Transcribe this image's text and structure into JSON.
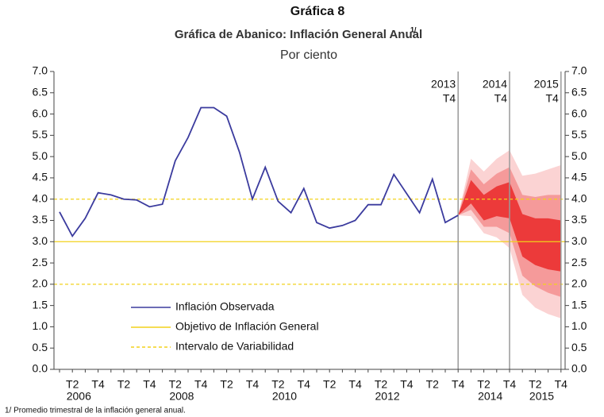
{
  "chart_data": {
    "type": "fan",
    "header": "Gráfica 8",
    "title": "Gráfica de Abanico: Inflación General Anual",
    "title_note": "1/",
    "subtitle": "Por ciento",
    "footnote": "1/ Promedio trimestral de la inflación general anual.",
    "categories": [
      null,
      "T2",
      null,
      "T4",
      null,
      "T2",
      null,
      "T4",
      null,
      "T2",
      null,
      "T4",
      null,
      "T2",
      null,
      "T4",
      null,
      "T2",
      null,
      "T4",
      null,
      "T2",
      null,
      "T4",
      null,
      "T2",
      null,
      "T4",
      null,
      "T2",
      null,
      "T4",
      null,
      "T2",
      null,
      "T4",
      null,
      "T2",
      null,
      "T4"
    ],
    "year_labels": [
      "2006",
      "2008",
      "2010",
      "2012",
      "2014",
      "2015"
    ],
    "markers": [
      {
        "year": "2013",
        "quarter": "T4"
      },
      {
        "year": "2014",
        "quarter": "T4"
      },
      {
        "year": "2015",
        "quarter": "T4"
      }
    ],
    "series": [
      {
        "name": "Inflación Observada",
        "color": "#3b3b9e",
        "values": [
          3.7,
          3.13,
          3.55,
          4.15,
          4.1,
          4.0,
          3.98,
          3.82,
          3.88,
          4.9,
          5.45,
          6.15,
          6.15,
          5.95,
          5.1,
          4.0,
          4.75,
          3.95,
          3.68,
          4.25,
          3.45,
          3.32,
          3.38,
          3.5,
          3.87,
          3.87,
          4.58,
          4.13,
          3.68,
          4.47,
          3.45,
          3.62,
          null,
          null,
          null,
          null,
          null,
          null,
          null,
          null
        ]
      }
    ],
    "fan_bands": [
      {
        "color": "#fbd3d3",
        "upper": [
          null,
          null,
          null,
          null,
          null,
          null,
          null,
          null,
          null,
          null,
          null,
          null,
          null,
          null,
          null,
          null,
          null,
          null,
          null,
          null,
          null,
          null,
          null,
          null,
          null,
          null,
          null,
          null,
          null,
          null,
          null,
          3.62,
          4.95,
          4.65,
          4.95,
          5.15,
          4.55,
          4.6,
          4.7,
          4.8
        ],
        "lower": [
          null,
          null,
          null,
          null,
          null,
          null,
          null,
          null,
          null,
          null,
          null,
          null,
          null,
          null,
          null,
          null,
          null,
          null,
          null,
          null,
          null,
          null,
          null,
          null,
          null,
          null,
          null,
          null,
          null,
          null,
          null,
          3.62,
          3.6,
          3.2,
          3.1,
          2.85,
          1.75,
          1.45,
          1.3,
          1.2
        ]
      },
      {
        "color": "#f59a9a",
        "upper": [
          null,
          null,
          null,
          null,
          null,
          null,
          null,
          null,
          null,
          null,
          null,
          null,
          null,
          null,
          null,
          null,
          null,
          null,
          null,
          null,
          null,
          null,
          null,
          null,
          null,
          null,
          null,
          null,
          null,
          null,
          null,
          3.62,
          4.7,
          4.35,
          4.6,
          4.75,
          4.1,
          4.05,
          4.1,
          4.1
        ],
        "lower": [
          null,
          null,
          null,
          null,
          null,
          null,
          null,
          null,
          null,
          null,
          null,
          null,
          null,
          null,
          null,
          null,
          null,
          null,
          null,
          null,
          null,
          null,
          null,
          null,
          null,
          null,
          null,
          null,
          null,
          null,
          null,
          3.62,
          3.75,
          3.35,
          3.35,
          3.2,
          2.2,
          1.95,
          1.8,
          1.7
        ]
      },
      {
        "color": "#ec3a3a",
        "upper": [
          null,
          null,
          null,
          null,
          null,
          null,
          null,
          null,
          null,
          null,
          null,
          null,
          null,
          null,
          null,
          null,
          null,
          null,
          null,
          null,
          null,
          null,
          null,
          null,
          null,
          null,
          null,
          null,
          null,
          null,
          null,
          3.62,
          4.45,
          4.1,
          4.3,
          4.4,
          3.65,
          3.55,
          3.55,
          3.5
        ],
        "lower": [
          null,
          null,
          null,
          null,
          null,
          null,
          null,
          null,
          null,
          null,
          null,
          null,
          null,
          null,
          null,
          null,
          null,
          null,
          null,
          null,
          null,
          null,
          null,
          null,
          null,
          null,
          null,
          null,
          null,
          null,
          null,
          3.62,
          3.9,
          3.5,
          3.6,
          3.55,
          2.65,
          2.45,
          2.35,
          2.3
        ]
      }
    ],
    "reference_lines": [
      {
        "name": "Objetivo de Inflación General",
        "color": "#f2d21b",
        "dashed": false,
        "values": [
          3
        ]
      },
      {
        "name": "Intervalo de Variabilidad",
        "color": "#f2d21b",
        "dashed": true,
        "values": [
          2,
          4
        ]
      }
    ],
    "ylim": [
      0,
      7
    ],
    "yticks": [
      {
        "value": 0,
        "label": "0.0"
      },
      0.5,
      {
        "value": 1,
        "label": "1.0"
      },
      1.5,
      {
        "value": 2,
        "label": "2.0"
      },
      2.5,
      {
        "value": 3,
        "label": "3.0"
      },
      3.5,
      {
        "value": 4,
        "label": "4.0"
      },
      4.5,
      {
        "value": 5,
        "label": "5.0"
      },
      5.5,
      {
        "value": 6,
        "label": "6.0"
      },
      6.5,
      {
        "value": 7,
        "label": "7.0"
      }
    ],
    "y2lim": [
      0,
      7
    ],
    "y2ticks": [
      {
        "value": 0,
        "label": "0.0"
      },
      0.5,
      {
        "value": 1,
        "label": "1.0"
      },
      1.5,
      {
        "value": 2,
        "label": "2.0"
      },
      2.5,
      {
        "value": 3,
        "label": "3.0"
      },
      3.5,
      {
        "value": 4,
        "label": "4.0"
      },
      4.5,
      {
        "value": 5,
        "label": "5.0"
      },
      5.5,
      {
        "value": 6,
        "label": "6.0"
      },
      6.5,
      {
        "value": 7,
        "label": "7.0"
      }
    ]
  }
}
